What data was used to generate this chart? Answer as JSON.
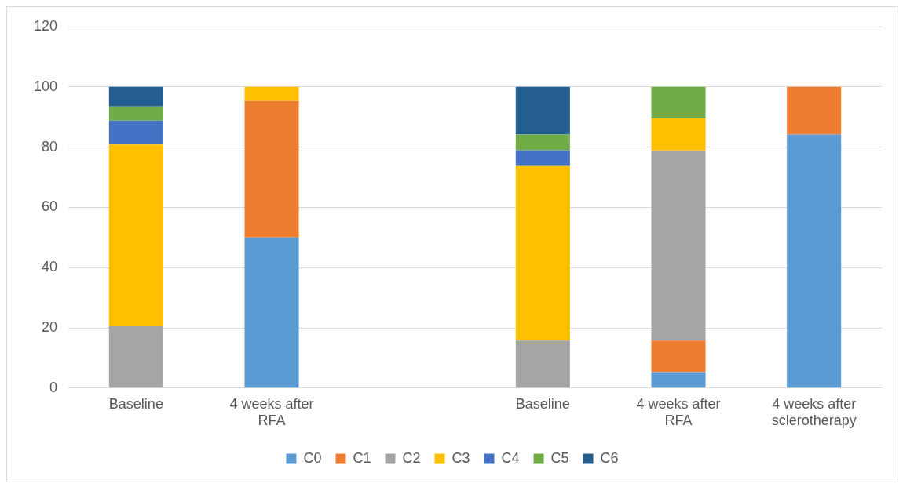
{
  "chart_data": {
    "type": "bar",
    "stacked": true,
    "categories": [
      "Baseline",
      "4 weeks after RFA",
      null,
      "Baseline",
      "4 weeks after RFA",
      "4 weeks after sclerotherapy"
    ],
    "series": [
      {
        "name": "C0",
        "color": "#5b9bd5",
        "values": [
          null,
          50,
          null,
          null,
          5.3,
          84.2
        ]
      },
      {
        "name": "C1",
        "color": "#ed7d31",
        "values": [
          null,
          45.3,
          null,
          null,
          10.5,
          15.8
        ]
      },
      {
        "name": "C2",
        "color": "#a5a5a5",
        "values": [
          20.5,
          null,
          null,
          15.8,
          63.1,
          null
        ]
      },
      {
        "name": "C3",
        "color": "#ffc000",
        "values": [
          60.4,
          4.7,
          null,
          57.9,
          10.6,
          null
        ]
      },
      {
        "name": "C4",
        "color": "#4472c4",
        "values": [
          7.9,
          null,
          null,
          5.3,
          null,
          null
        ]
      },
      {
        "name": "C5",
        "color": "#70ad47",
        "values": [
          4.7,
          null,
          null,
          5.2,
          10.5,
          null
        ]
      },
      {
        "name": "C6",
        "color": "#255e91",
        "values": [
          6.5,
          null,
          null,
          15.8,
          null,
          null
        ]
      }
    ],
    "ylim": [
      0,
      120
    ],
    "yticks": [
      0,
      20,
      40,
      60,
      80,
      100,
      120
    ],
    "grid": "y",
    "legend": "bottom"
  }
}
